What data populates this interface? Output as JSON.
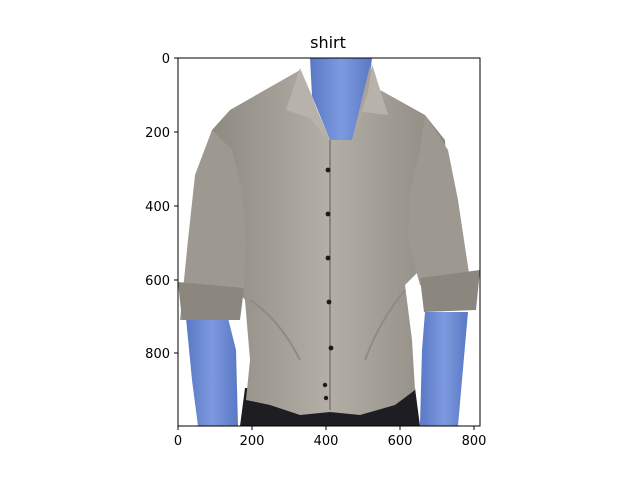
{
  "figure": {
    "title": "shirt",
    "x_ticks": [
      "0",
      "200",
      "400",
      "600",
      "800"
    ],
    "y_ticks": [
      "0",
      "200",
      "400",
      "600",
      "800"
    ],
    "x_range": [
      0,
      814
    ],
    "y_range": [
      0,
      1000
    ],
    "y_axis_inverted": true
  },
  "image": {
    "subject": "man wearing a grey button-up dress shirt with a blue-tinted skin mask",
    "colors": {
      "shirt": "#a8a49c",
      "shirt_shadow": "#8a867f",
      "skin_mask": "#6f8fd6",
      "skin_shadow": "#4f6bb0",
      "pants": "#1e1e22",
      "button": "#1b1b1b",
      "background": "#ffffff"
    },
    "buttons_on_placket": 7
  }
}
